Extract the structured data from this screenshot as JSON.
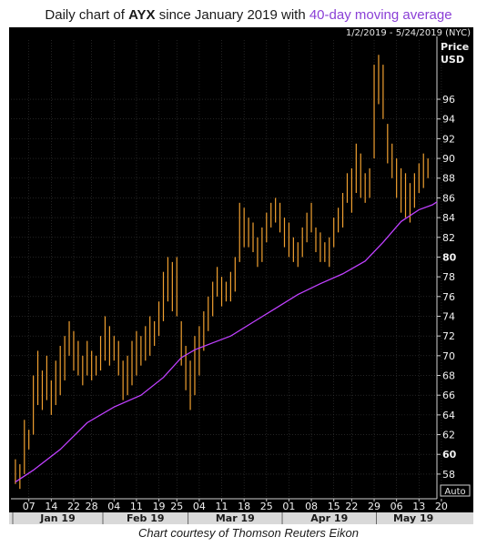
{
  "title": {
    "prefix": "Daily chart of ",
    "ticker": "AYX",
    "middle": " since January 2019 with ",
    "ma_label": "40-day moving average"
  },
  "caption": "Chart courtesy of Thomson Reuters Eikon",
  "date_range": "1/2/2019 - 5/24/2019 (NYC)",
  "price_header": [
    "Price",
    "USD"
  ],
  "auto_label": "Auto",
  "colors": {
    "background": "#000000",
    "bars": "#f0a030",
    "moving_average": "#c040ff",
    "grid": "#3a3a3a",
    "month_band": "#d9d9d9"
  },
  "chart_data": {
    "type": "ohlc",
    "title": "Daily chart of AYX since January 2019 with 40-day moving average",
    "ylabel": "Price USD",
    "ylim": [
      55.5,
      102
    ],
    "grid": true,
    "y_ticks": [
      58,
      60,
      62,
      64,
      66,
      68,
      70,
      72,
      74,
      76,
      78,
      80,
      82,
      84,
      86,
      88,
      90,
      92,
      94,
      96
    ],
    "y_ticks_bold": [
      60,
      80
    ],
    "x_ticks": [
      {
        "label": "07",
        "index": 3
      },
      {
        "label": "14",
        "index": 8
      },
      {
        "label": "22",
        "index": 13
      },
      {
        "label": "28",
        "index": 17
      },
      {
        "label": "04",
        "index": 22
      },
      {
        "label": "11",
        "index": 27
      },
      {
        "label": "19",
        "index": 32
      },
      {
        "label": "25",
        "index": 36
      },
      {
        "label": "04",
        "index": 41
      },
      {
        "label": "11",
        "index": 46
      },
      {
        "label": "18",
        "index": 51
      },
      {
        "label": "25",
        "index": 56
      },
      {
        "label": "01",
        "index": 61
      },
      {
        "label": "08",
        "index": 66
      },
      {
        "label": "15",
        "index": 71
      },
      {
        "label": "22",
        "index": 75
      },
      {
        "label": "29",
        "index": 80
      },
      {
        "label": "06",
        "index": 85
      },
      {
        "label": "13",
        "index": 90
      },
      {
        "label": "20",
        "index": 95
      }
    ],
    "months": [
      {
        "label": "Jan 19",
        "start": 0,
        "end": 19.5
      },
      {
        "label": "Feb 19",
        "start": 19.5,
        "end": 38.5
      },
      {
        "label": "Mar 19",
        "start": 38.5,
        "end": 59.5
      },
      {
        "label": "Apr 19",
        "start": 59.5,
        "end": 80.5
      },
      {
        "label": "May 19",
        "start": 80.5,
        "end": 97
      }
    ],
    "series": [
      {
        "name": "AYX",
        "bars": [
          [
            59.5,
            57.0
          ],
          [
            59.0,
            56.5
          ],
          [
            63.5,
            58.0
          ],
          [
            62.5,
            60.5
          ],
          [
            68.0,
            62.0
          ],
          [
            70.5,
            65.0
          ],
          [
            68.5,
            64.5
          ],
          [
            70.0,
            65.5
          ],
          [
            67.5,
            64.0
          ],
          [
            69.5,
            65.0
          ],
          [
            71.0,
            66.0
          ],
          [
            72.0,
            67.5
          ],
          [
            73.5,
            70.0
          ],
          [
            72.5,
            68.5
          ],
          [
            71.5,
            68.0
          ],
          [
            70.0,
            67.0
          ],
          [
            71.5,
            68.0
          ],
          [
            70.5,
            67.5
          ],
          [
            70.0,
            68.0
          ],
          [
            72.0,
            68.5
          ],
          [
            74.0,
            69.5
          ],
          [
            73.0,
            69.0
          ],
          [
            72.0,
            69.5
          ],
          [
            71.5,
            68.0
          ],
          [
            69.5,
            65.5
          ],
          [
            70.0,
            66.0
          ],
          [
            71.5,
            67.0
          ],
          [
            72.5,
            68.0
          ],
          [
            72.0,
            69.0
          ],
          [
            73.0,
            69.5
          ],
          [
            74.0,
            70.0
          ],
          [
            73.5,
            71.0
          ],
          [
            75.5,
            72.0
          ],
          [
            78.5,
            73.5
          ],
          [
            80.0,
            75.5
          ],
          [
            79.5,
            74.5
          ],
          [
            80.0,
            74.0
          ],
          [
            73.5,
            69.0
          ],
          [
            71.0,
            66.5
          ],
          [
            69.5,
            64.5
          ],
          [
            72.0,
            66.0
          ],
          [
            73.0,
            68.0
          ],
          [
            74.5,
            70.5
          ],
          [
            76.0,
            72.5
          ],
          [
            77.5,
            74.0
          ],
          [
            79.0,
            76.0
          ],
          [
            78.0,
            75.0
          ],
          [
            77.5,
            75.5
          ],
          [
            78.5,
            75.5
          ],
          [
            80.0,
            76.5
          ],
          [
            85.5,
            79.5
          ],
          [
            85.0,
            81.0
          ],
          [
            84.0,
            81.0
          ],
          [
            83.5,
            80.5
          ],
          [
            82.0,
            79.0
          ],
          [
            83.0,
            79.5
          ],
          [
            84.5,
            81.5
          ],
          [
            85.5,
            83.0
          ],
          [
            86.0,
            83.5
          ],
          [
            85.5,
            82.5
          ],
          [
            84.0,
            81.0
          ],
          [
            83.5,
            80.0
          ],
          [
            82.0,
            79.5
          ],
          [
            81.5,
            79.0
          ],
          [
            83.0,
            80.0
          ],
          [
            84.5,
            81.5
          ],
          [
            85.5,
            82.5
          ],
          [
            83.0,
            80.5
          ],
          [
            82.5,
            79.5
          ],
          [
            81.5,
            79.5
          ],
          [
            82.0,
            79.0
          ],
          [
            84.0,
            81.0
          ],
          [
            85.0,
            82.5
          ],
          [
            86.5,
            83.0
          ],
          [
            88.5,
            85.5
          ],
          [
            89.0,
            84.5
          ],
          [
            91.5,
            86.5
          ],
          [
            90.5,
            86.0
          ],
          [
            88.5,
            85.5
          ],
          [
            89.0,
            86.0
          ],
          [
            99.5,
            90.0
          ],
          [
            100.5,
            95.5
          ],
          [
            99.5,
            94.0
          ],
          [
            93.5,
            89.5
          ],
          [
            91.5,
            88.0
          ],
          [
            90.0,
            86.0
          ],
          [
            89.0,
            84.5
          ],
          [
            88.5,
            84.0
          ],
          [
            87.5,
            83.5
          ],
          [
            88.5,
            85.0
          ],
          [
            89.5,
            86.5
          ],
          [
            90.5,
            87.0
          ],
          [
            90.0,
            88.0
          ]
        ]
      },
      {
        "name": "40-day moving average",
        "points": [
          [
            0,
            57.2
          ],
          [
            4,
            58.4
          ],
          [
            10,
            60.5
          ],
          [
            16,
            63.2
          ],
          [
            22,
            64.8
          ],
          [
            28,
            66.0
          ],
          [
            33,
            67.8
          ],
          [
            37,
            69.8
          ],
          [
            40,
            70.6
          ],
          [
            44,
            71.3
          ],
          [
            48,
            72.0
          ],
          [
            53,
            73.4
          ],
          [
            58,
            74.8
          ],
          [
            63,
            76.2
          ],
          [
            68,
            77.3
          ],
          [
            73,
            78.3
          ],
          [
            78,
            79.6
          ],
          [
            82,
            81.5
          ],
          [
            86,
            83.6
          ],
          [
            90,
            84.8
          ],
          [
            93,
            85.3
          ],
          [
            94,
            85.6
          ]
        ]
      }
    ]
  }
}
